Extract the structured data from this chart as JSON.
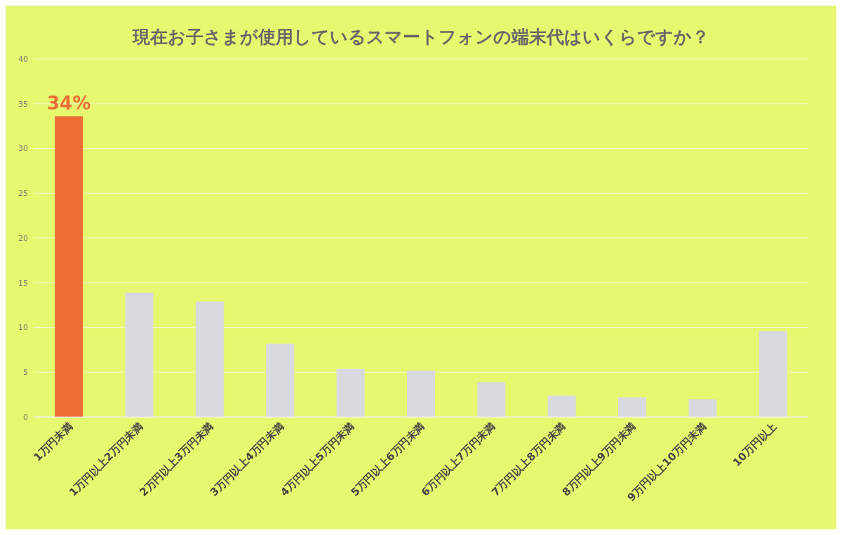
{
  "chart_data": {
    "type": "bar",
    "title": "現在お子さまが使用しているスマートフォンの端末代はいくらですか？",
    "categories": [
      "1万円未満",
      "1万円以上2万円未満",
      "2万円以上3万円未満",
      "3万円以上4万円未満",
      "4万円以上5万円未満",
      "5万円以上6万円未満",
      "6万円以上7万円未満",
      "7万円以上8万円未満",
      "8万円以上9万円未満",
      "9万円以上10万円未満",
      "10万円以上"
    ],
    "values": [
      33.6,
      13.9,
      12.9,
      8.2,
      5.4,
      5.2,
      3.9,
      2.4,
      2.2,
      2.0,
      9.6
    ],
    "colors": [
      "#ec6e35",
      "#d9d9e0",
      "#d9d9e0",
      "#d9d9e0",
      "#d9d9e0",
      "#d9d9e0",
      "#d9d9e0",
      "#d9d9e0",
      "#d9d9e0",
      "#d9d9e0",
      "#d9d9e0"
    ],
    "value_labels": [
      "34%",
      null,
      null,
      null,
      null,
      null,
      null,
      null,
      null,
      null,
      null
    ],
    "ylim": [
      0,
      40
    ],
    "yticks": [
      0,
      5,
      10,
      15,
      20,
      25,
      30,
      35,
      40
    ],
    "grid": "y",
    "legend": false
  }
}
